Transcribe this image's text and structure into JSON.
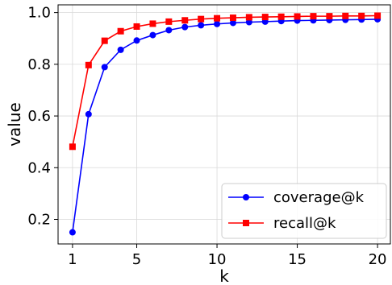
{
  "chart_data": {
    "type": "line",
    "xlabel": "k",
    "ylabel": "value",
    "x": [
      1,
      2,
      3,
      4,
      5,
      6,
      7,
      8,
      9,
      10,
      11,
      12,
      13,
      14,
      15,
      16,
      17,
      18,
      19,
      20
    ],
    "xlim": [
      0.1,
      20.8
    ],
    "ylim": [
      0.105,
      1.03
    ],
    "xticks": [
      1,
      5,
      10,
      15,
      20
    ],
    "xtick_labels": [
      "1",
      "5",
      "10",
      "15",
      "20"
    ],
    "yticks": [
      0.2,
      0.4,
      0.6,
      0.8,
      1.0
    ],
    "ytick_labels": [
      "0.2",
      "0.4",
      "0.6",
      "0.8",
      "1.0"
    ],
    "grid": true,
    "legend_position": "lower-right",
    "series": [
      {
        "name": "coverage@k",
        "color": "#0000ff",
        "marker": "circle",
        "values": [
          0.15,
          0.607,
          0.789,
          0.856,
          0.892,
          0.913,
          0.932,
          0.944,
          0.951,
          0.956,
          0.96,
          0.963,
          0.965,
          0.967,
          0.969,
          0.97,
          0.971,
          0.972,
          0.973,
          0.974
        ]
      },
      {
        "name": "recall@k",
        "color": "#ff0000",
        "marker": "square",
        "values": [
          0.481,
          0.797,
          0.891,
          0.928,
          0.946,
          0.957,
          0.965,
          0.97,
          0.975,
          0.978,
          0.98,
          0.982,
          0.983,
          0.984,
          0.985,
          0.986,
          0.986,
          0.987,
          0.987,
          0.988
        ]
      }
    ]
  }
}
